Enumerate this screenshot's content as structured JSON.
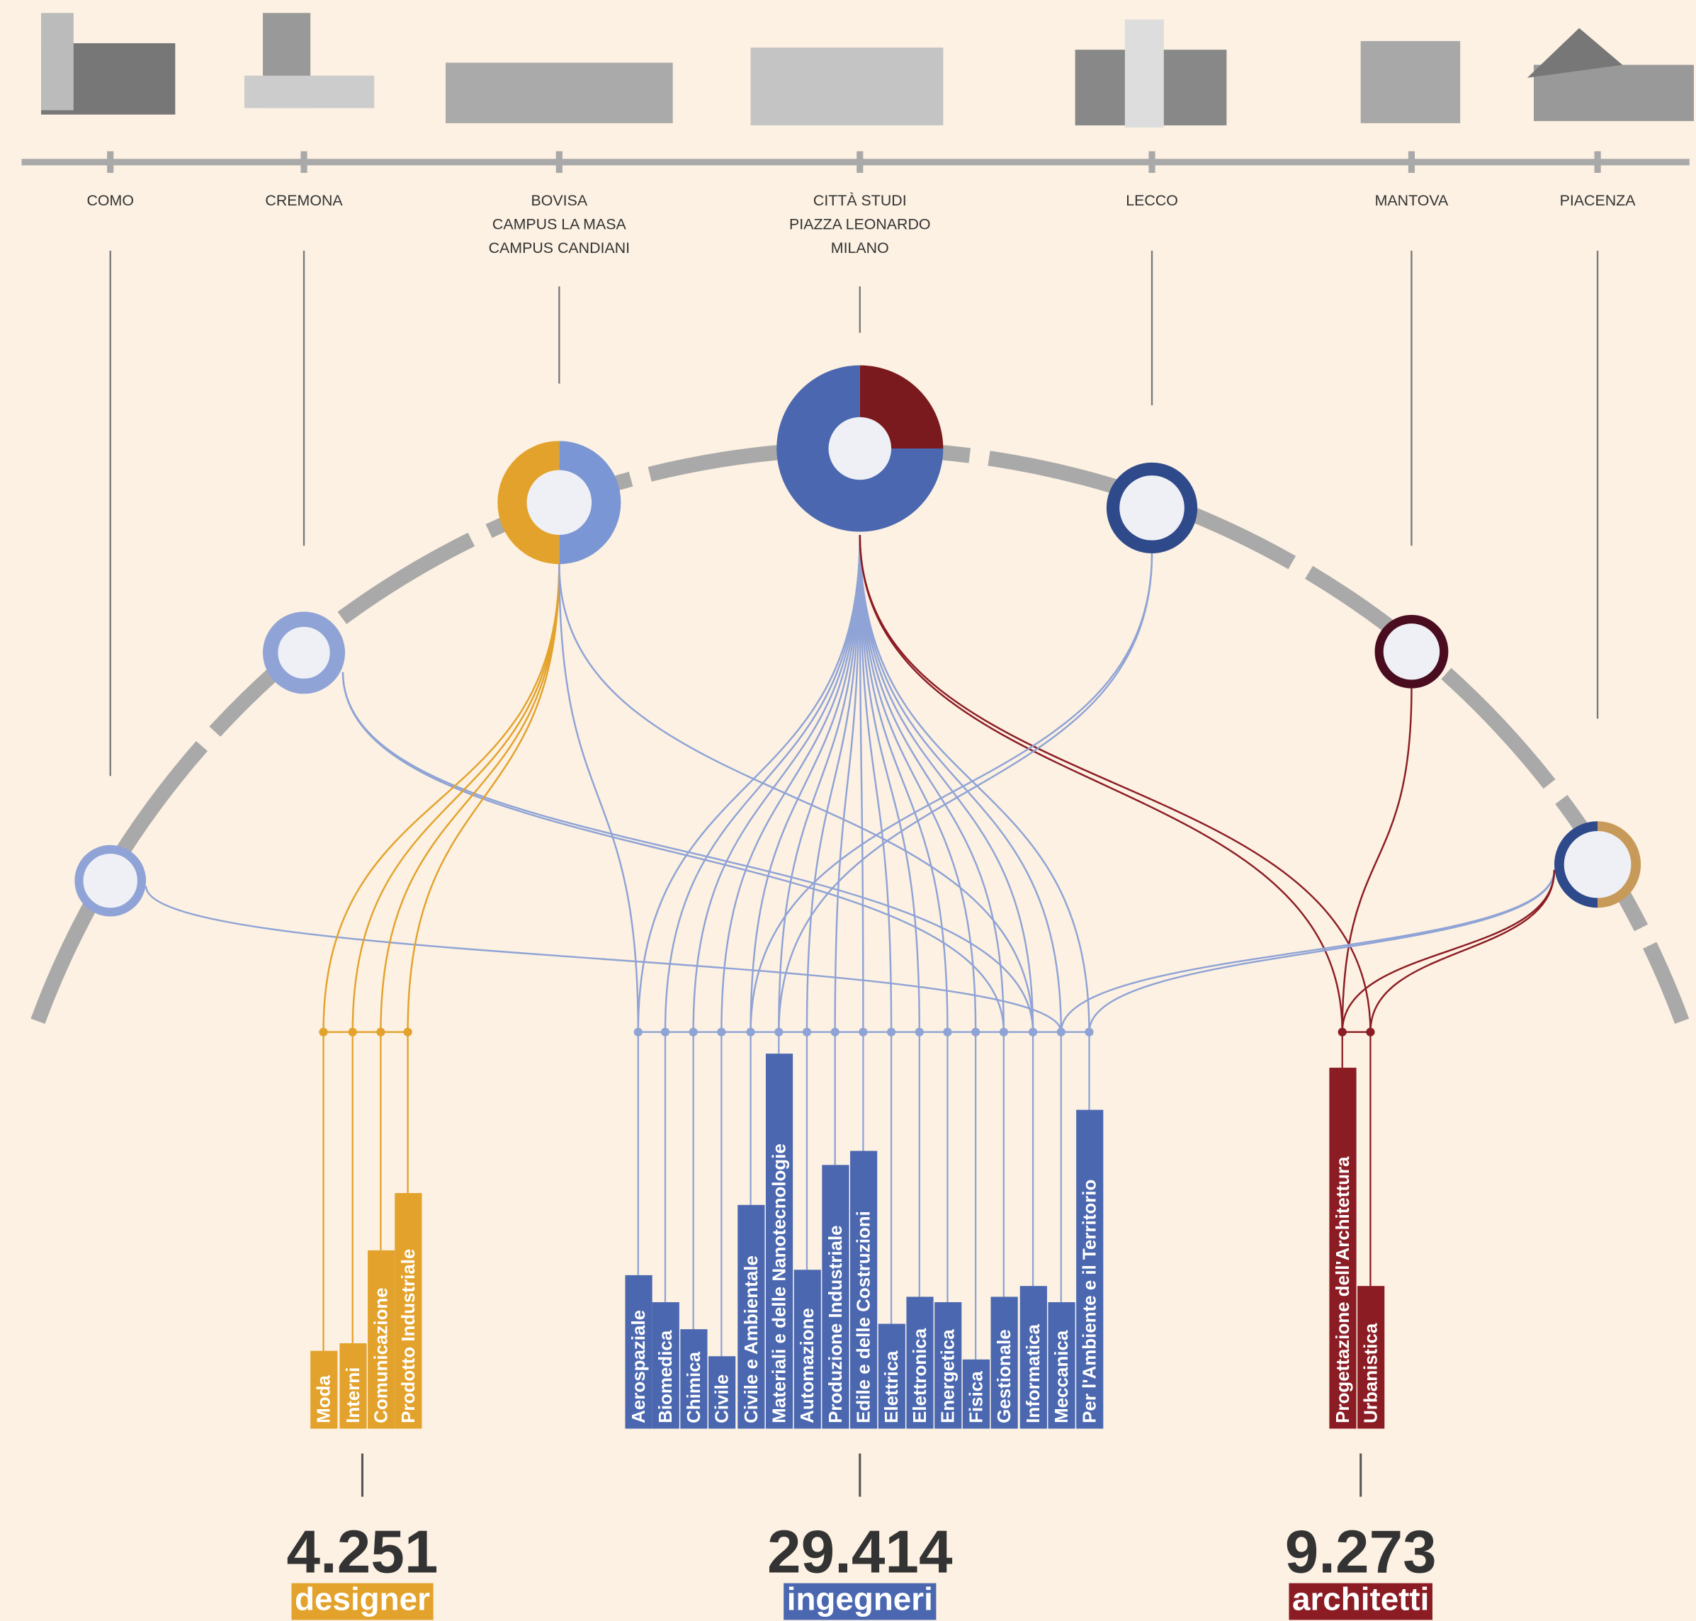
{
  "campuses": [
    {
      "label": [
        "COMO"
      ]
    },
    {
      "label": [
        "CREMONA"
      ]
    },
    {
      "label": [
        "BOVISA",
        "CAMPUS LA MASA",
        "CAMPUS CANDIANI"
      ]
    },
    {
      "label": [
        "CITTÀ STUDI",
        "PIAZZA LEONARDO",
        "MILANO"
      ]
    },
    {
      "label": [
        "LECCO"
      ]
    },
    {
      "label": [
        "MANTOVA"
      ]
    },
    {
      "label": [
        "PIACENZA"
      ]
    }
  ],
  "schools": [
    {
      "total": "4.251",
      "name": "designer",
      "courses": [
        "Moda",
        "Interni",
        "Comunicazione",
        "Prodotto Industriale"
      ]
    },
    {
      "total": "29.414",
      "name": "ingegneri",
      "courses": [
        "Aerospaziale",
        "Biomedica",
        "Chimica",
        "Civile",
        "Civile e Ambientale",
        "Materiali e delle Nanotecnologie",
        "Automazione",
        "Produzione Industriale",
        "Edile e delle Costruzioni",
        "Elettrica",
        "Elettronica",
        "Energetica",
        "Fisica",
        "Gestionale",
        "Informatica",
        "Meccanica",
        "Per l'Ambiente e il Territorio"
      ]
    },
    {
      "total": "9.273",
      "name": "architetti",
      "courses": [
        "Progettazione dell'Architettura",
        "Urbanistica"
      ]
    }
  ]
}
